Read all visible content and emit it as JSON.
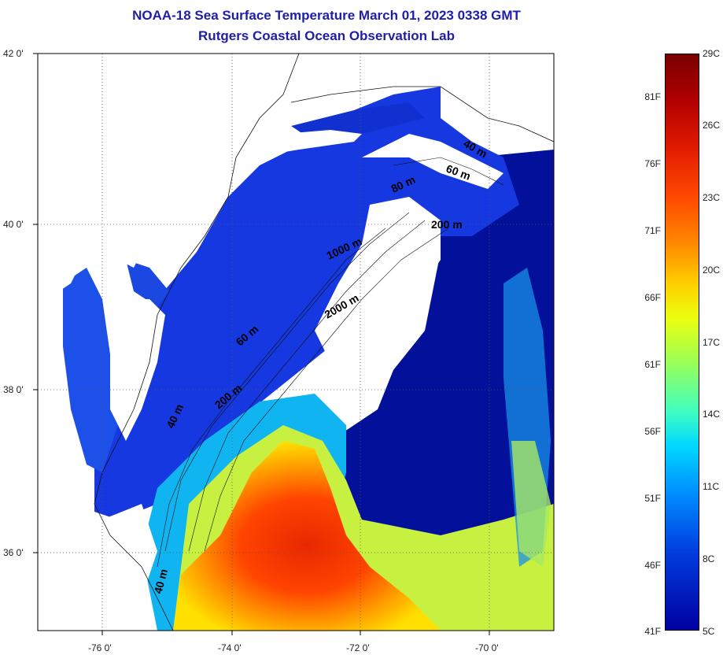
{
  "title_line1": "NOAA-18 Sea Surface Temperature March 01, 2023 0338 GMT",
  "title_line2": "Rutgers Coastal Ocean Observation Lab",
  "lat_labels": [
    "42 0'",
    "40 0'",
    "38 0'",
    "36 0'"
  ],
  "lon_labels": [
    "-76 0'",
    "-74 0'",
    "-72 0'",
    "-70 0'"
  ],
  "contour_labels": [
    "40 m",
    "60 m",
    "80 m",
    "200 m",
    "1000 m",
    "2000 m",
    "60 m",
    "40 m",
    "200 m",
    "40 m"
  ],
  "colorbar": {
    "fahrenheit": [
      "81F",
      "76F",
      "71F",
      "66F",
      "61F",
      "56F",
      "51F",
      "46F",
      "41F"
    ],
    "celsius": [
      "29C",
      "26C",
      "23C",
      "20C",
      "17C",
      "14C",
      "11C",
      "8C",
      "5C"
    ]
  },
  "colors": {
    "title": "#1e1ea8",
    "cold": "#0018c8",
    "warm": "#ff3a00",
    "land": "#ffffff"
  }
}
